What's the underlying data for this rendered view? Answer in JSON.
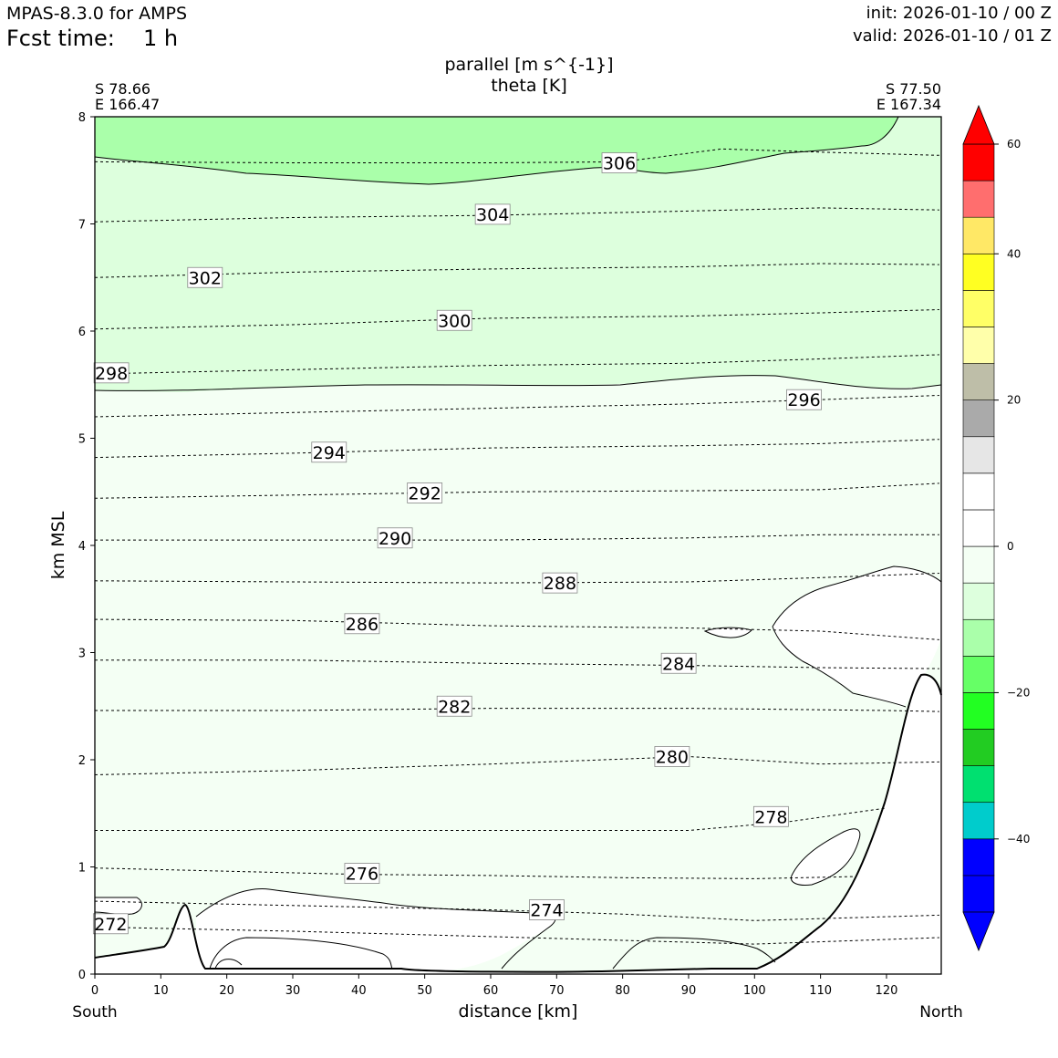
{
  "header": {
    "model": "MPAS-8.3.0 for AMPS",
    "fcst_label": "Fcst time:",
    "fcst_value": "1 h",
    "init": "init: 2026-01-10 / 00 Z",
    "valid": "valid: 2026-01-10 / 01 Z"
  },
  "endpoints": {
    "left_lat": "S 78.66",
    "left_lon": "E 166.47",
    "right_lat": "S 77.50",
    "right_lon": "E 167.34",
    "left_dir": "South",
    "right_dir": "North"
  },
  "chart_data": {
    "type": "area",
    "title_lines": [
      "parallel [m s^{-1}]",
      "theta [K]"
    ],
    "xlabel": "distance [km]",
    "ylabel": "km MSL",
    "xlim": [
      0,
      128.3
    ],
    "ylim": [
      0,
      8
    ],
    "x_ticks": [
      0,
      10,
      20,
      30,
      40,
      50,
      60,
      70,
      80,
      90,
      100,
      110,
      120
    ],
    "y_ticks": [
      0,
      1,
      2,
      3,
      4,
      5,
      6,
      7,
      8
    ],
    "colorbar": {
      "levels": [
        -50,
        -45,
        -40,
        -35,
        -30,
        -25,
        -20,
        -15,
        -10,
        -5,
        0,
        5,
        10,
        15,
        20,
        25,
        30,
        35,
        40,
        45,
        50,
        55
      ],
      "colors": [
        "#0000ff",
        "#0000ff",
        "#00cccc",
        "#00e070",
        "#22cc22",
        "#22ff22",
        "#66ff66",
        "#aaffaa",
        "#ddffdd",
        "#f4fff4",
        "#ffffff",
        "#ffffff",
        "#e6e6e6",
        "#aaaaaa",
        "#bebea8",
        "#ffffaa",
        "#ffff66",
        "#ffff22",
        "#ffe866",
        "#ff6e6e",
        "#ff0000"
      ],
      "extend_low_color": "#0000ff",
      "extend_high_color": "#ff0000",
      "tick_values": [
        60,
        40,
        20,
        0,
        -20,
        -40
      ],
      "tick_labels": [
        "60",
        "40",
        "20",
        "0",
        "−20",
        "−40"
      ]
    },
    "theta_contours": [
      {
        "value": 272,
        "label": "272",
        "label_x": 2.4,
        "label_y": 0.47,
        "points": [
          [
            0,
            0.44
          ],
          [
            30,
            0.4
          ],
          [
            60,
            0.35
          ],
          [
            100,
            0.28
          ],
          [
            128,
            0.34
          ]
        ]
      },
      {
        "value": 274,
        "label": "274",
        "label_x": 68.5,
        "label_y": 0.6,
        "points": [
          [
            0,
            0.68
          ],
          [
            30,
            0.64
          ],
          [
            60,
            0.6
          ],
          [
            80,
            0.56
          ],
          [
            100,
            0.5
          ],
          [
            128,
            0.55
          ]
        ]
      },
      {
        "value": 276,
        "label": "276",
        "label_x": 40.5,
        "label_y": 0.94,
        "points": [
          [
            0,
            0.99
          ],
          [
            20,
            0.96
          ],
          [
            40,
            0.93
          ],
          [
            60,
            0.92
          ],
          [
            80,
            0.9
          ],
          [
            100,
            0.89
          ],
          [
            115,
            0.91
          ]
        ]
      },
      {
        "value": 278,
        "label": "278",
        "label_x": 102.5,
        "label_y": 1.47,
        "points": [
          [
            0,
            1.34
          ],
          [
            30,
            1.34
          ],
          [
            60,
            1.34
          ],
          [
            90,
            1.34
          ],
          [
            105,
            1.42
          ],
          [
            120,
            1.55
          ]
        ]
      },
      {
        "value": 280,
        "label": "280",
        "label_x": 87.5,
        "label_y": 2.03,
        "points": [
          [
            0,
            1.86
          ],
          [
            30,
            1.9
          ],
          [
            60,
            1.96
          ],
          [
            90,
            2.03
          ],
          [
            110,
            1.96
          ],
          [
            128,
            1.98
          ]
        ]
      },
      {
        "value": 282,
        "label": "282",
        "label_x": 54.5,
        "label_y": 2.5,
        "points": [
          [
            0,
            2.46
          ],
          [
            30,
            2.46
          ],
          [
            60,
            2.48
          ],
          [
            90,
            2.48
          ],
          [
            120,
            2.46
          ],
          [
            128,
            2.45
          ]
        ]
      },
      {
        "value": 284,
        "label": "284",
        "label_x": 88.5,
        "label_y": 2.9,
        "points": [
          [
            0,
            2.93
          ],
          [
            30,
            2.93
          ],
          [
            60,
            2.9
          ],
          [
            90,
            2.88
          ],
          [
            110,
            2.86
          ],
          [
            128,
            2.85
          ]
        ]
      },
      {
        "value": 286,
        "label": "286",
        "label_x": 40.5,
        "label_y": 3.27,
        "points": [
          [
            0,
            3.31
          ],
          [
            30,
            3.3
          ],
          [
            60,
            3.25
          ],
          [
            90,
            3.23
          ],
          [
            110,
            3.2
          ],
          [
            128,
            3.12
          ]
        ]
      },
      {
        "value": 288,
        "label": "288",
        "label_x": 70.5,
        "label_y": 3.65,
        "points": [
          [
            0,
            3.67
          ],
          [
            30,
            3.66
          ],
          [
            60,
            3.65
          ],
          [
            90,
            3.66
          ],
          [
            110,
            3.7
          ],
          [
            128,
            3.74
          ]
        ]
      },
      {
        "value": 290,
        "label": "290",
        "label_x": 45.5,
        "label_y": 4.07,
        "points": [
          [
            0,
            4.05
          ],
          [
            30,
            4.05
          ],
          [
            60,
            4.05
          ],
          [
            90,
            4.07
          ],
          [
            110,
            4.1
          ],
          [
            128,
            4.1
          ]
        ]
      },
      {
        "value": 292,
        "label": "292",
        "label_x": 50,
        "label_y": 4.49,
        "points": [
          [
            0,
            4.44
          ],
          [
            30,
            4.47
          ],
          [
            60,
            4.5
          ],
          [
            90,
            4.51
          ],
          [
            110,
            4.52
          ],
          [
            128,
            4.58
          ]
        ]
      },
      {
        "value": 294,
        "label": "294",
        "label_x": 35.5,
        "label_y": 4.87,
        "points": [
          [
            0,
            4.82
          ],
          [
            30,
            4.86
          ],
          [
            60,
            4.91
          ],
          [
            90,
            4.93
          ],
          [
            110,
            4.95
          ],
          [
            128,
            4.99
          ]
        ]
      },
      {
        "value": 296,
        "label": "296",
        "label_x": 107.5,
        "label_y": 5.36,
        "points": [
          [
            0,
            5.2
          ],
          [
            30,
            5.24
          ],
          [
            60,
            5.28
          ],
          [
            90,
            5.32
          ],
          [
            110,
            5.36
          ],
          [
            128,
            5.4
          ]
        ]
      },
      {
        "value": 298,
        "label": "298",
        "label_x": 2.5,
        "label_y": 5.61,
        "points": [
          [
            0,
            5.6
          ],
          [
            30,
            5.64
          ],
          [
            60,
            5.68
          ],
          [
            90,
            5.7
          ],
          [
            110,
            5.74
          ],
          [
            128,
            5.78
          ]
        ]
      },
      {
        "value": 300,
        "label": "300",
        "label_x": 54.5,
        "label_y": 6.1,
        "points": [
          [
            0,
            6.02
          ],
          [
            30,
            6.06
          ],
          [
            60,
            6.12
          ],
          [
            90,
            6.14
          ],
          [
            110,
            6.17
          ],
          [
            128,
            6.2
          ]
        ]
      },
      {
        "value": 302,
        "label": "302",
        "label_x": 16.7,
        "label_y": 6.5,
        "points": [
          [
            0,
            6.5
          ],
          [
            30,
            6.55
          ],
          [
            60,
            6.58
          ],
          [
            90,
            6.6
          ],
          [
            110,
            6.63
          ],
          [
            128,
            6.62
          ]
        ]
      },
      {
        "value": 304,
        "label": "304",
        "label_x": 60.3,
        "label_y": 7.09,
        "points": [
          [
            0,
            7.02
          ],
          [
            30,
            7.06
          ],
          [
            60,
            7.08
          ],
          [
            90,
            7.12
          ],
          [
            110,
            7.15
          ],
          [
            128,
            7.13
          ]
        ]
      },
      {
        "value": 306,
        "label": "306",
        "label_x": 79.5,
        "label_y": 7.57,
        "points": [
          [
            0,
            7.58
          ],
          [
            30,
            7.57
          ],
          [
            60,
            7.57
          ],
          [
            80,
            7.58
          ],
          [
            95,
            7.7
          ],
          [
            110,
            7.67
          ],
          [
            128,
            7.64
          ]
        ]
      }
    ]
  }
}
